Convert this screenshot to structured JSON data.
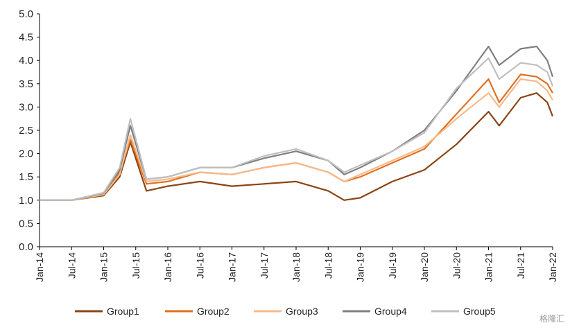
{
  "chart_data": {
    "type": "line",
    "title": "",
    "xlabel": "",
    "ylabel": "",
    "ylim": [
      0.0,
      5.0
    ],
    "yticks": [
      "0.0",
      "0.5",
      "1.0",
      "1.5",
      "2.0",
      "2.5",
      "3.0",
      "3.5",
      "4.0",
      "4.5",
      "5.0"
    ],
    "xticks": [
      "Jan-14",
      "Jul-14",
      "Jan-15",
      "Jul-15",
      "Jan-16",
      "Jul-16",
      "Jan-17",
      "Jul-17",
      "Jan-18",
      "Jul-18",
      "Jan-19",
      "Jul-19",
      "Jan-20",
      "Jul-20",
      "Jan-21",
      "Jul-21",
      "Jan-22"
    ],
    "grid": false,
    "legend_position": "bottom",
    "x": [
      "2014-01",
      "2014-07",
      "2015-01",
      "2015-04",
      "2015-06",
      "2015-09",
      "2016-01",
      "2016-07",
      "2017-01",
      "2017-07",
      "2018-01",
      "2018-07",
      "2018-10",
      "2019-01",
      "2019-07",
      "2020-01",
      "2020-07",
      "2021-01",
      "2021-03",
      "2021-07",
      "2021-10",
      "2021-12",
      "2022-01"
    ],
    "series": [
      {
        "name": "Group1",
        "color": "#8B4513",
        "values": [
          1.0,
          1.0,
          1.1,
          1.5,
          2.25,
          1.2,
          1.3,
          1.4,
          1.3,
          1.35,
          1.4,
          1.2,
          1.0,
          1.05,
          1.4,
          1.65,
          2.2,
          2.9,
          2.6,
          3.2,
          3.3,
          3.1,
          2.8
        ]
      },
      {
        "name": "Group2",
        "color": "#E07020",
        "values": [
          1.0,
          1.0,
          1.12,
          1.6,
          2.3,
          1.35,
          1.4,
          1.6,
          1.55,
          1.7,
          1.8,
          1.6,
          1.4,
          1.5,
          1.8,
          2.1,
          2.85,
          3.6,
          3.1,
          3.7,
          3.65,
          3.5,
          3.3
        ]
      },
      {
        "name": "Group3",
        "color": "#F7B98A",
        "values": [
          1.0,
          1.0,
          1.12,
          1.55,
          2.4,
          1.4,
          1.45,
          1.6,
          1.55,
          1.7,
          1.8,
          1.6,
          1.4,
          1.55,
          1.85,
          2.15,
          2.75,
          3.3,
          3.0,
          3.6,
          3.55,
          3.35,
          3.15
        ]
      },
      {
        "name": "Group4",
        "color": "#7F7F7F",
        "values": [
          1.0,
          1.0,
          1.15,
          1.65,
          2.6,
          1.45,
          1.5,
          1.7,
          1.7,
          1.9,
          2.05,
          1.85,
          1.55,
          1.7,
          2.05,
          2.5,
          3.35,
          4.3,
          3.9,
          4.25,
          4.3,
          4.0,
          3.65
        ]
      },
      {
        "name": "Group5",
        "color": "#BFBFBF",
        "values": [
          1.0,
          1.0,
          1.16,
          1.7,
          2.75,
          1.45,
          1.5,
          1.7,
          1.7,
          1.95,
          2.1,
          1.85,
          1.6,
          1.75,
          2.05,
          2.45,
          3.4,
          4.05,
          3.6,
          3.95,
          3.9,
          3.75,
          3.45
        ]
      }
    ]
  },
  "watermark": "格隆汇"
}
